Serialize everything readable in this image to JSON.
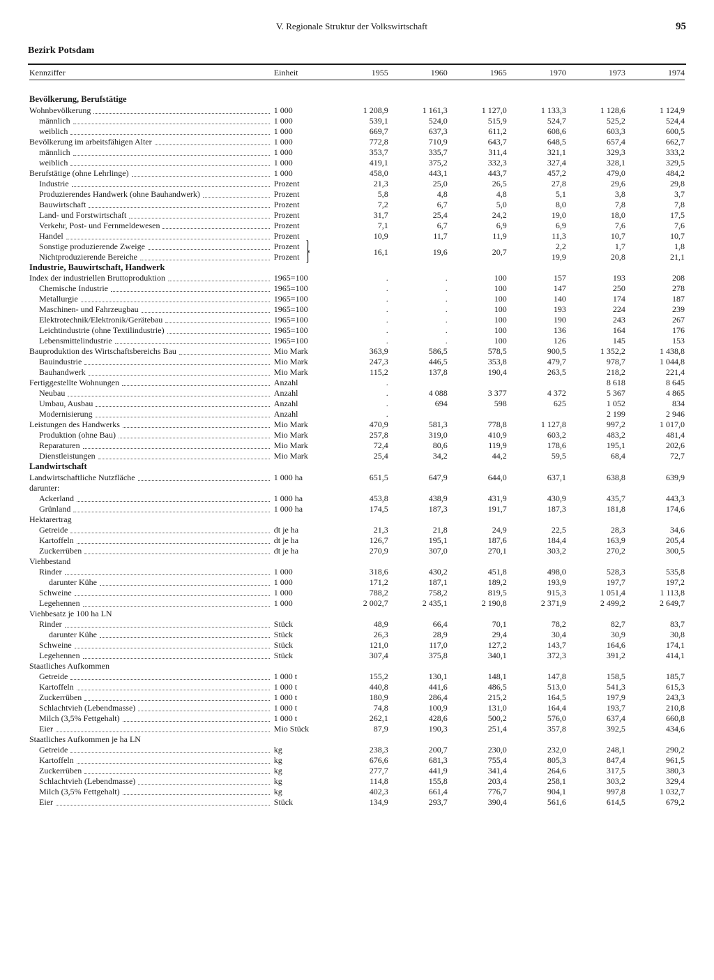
{
  "page": {
    "chapter": "V. Regionale Struktur der Volkswirtschaft",
    "number": "95",
    "title": "Bezirk Potsdam",
    "col_label": "Kennziffer",
    "col_unit": "Einheit",
    "years": [
      "1955",
      "1960",
      "1965",
      "1970",
      "1973",
      "1974"
    ]
  },
  "sections": [
    {
      "heading": "Bevölkerung, Berufstätige",
      "rows": [
        {
          "label": "Wohnbevölkerung",
          "unit": "1 000",
          "indent": 0,
          "v": [
            "1 208,9",
            "1 161,3",
            "1 127,0",
            "1 133,3",
            "1 128,6",
            "1 124,9"
          ]
        },
        {
          "label": "männlich",
          "unit": "1 000",
          "indent": 1,
          "v": [
            "539,1",
            "524,0",
            "515,9",
            "524,7",
            "525,2",
            "524,4"
          ]
        },
        {
          "label": "weiblich",
          "unit": "1 000",
          "indent": 1,
          "v": [
            "669,7",
            "637,3",
            "611,2",
            "608,6",
            "603,3",
            "600,5"
          ]
        },
        {
          "label": "Bevölkerung im arbeitsfähigen Alter",
          "unit": "1 000",
          "indent": 0,
          "v": [
            "772,8",
            "710,9",
            "643,7",
            "648,5",
            "657,4",
            "662,7"
          ]
        },
        {
          "label": "männlich",
          "unit": "1 000",
          "indent": 1,
          "v": [
            "353,7",
            "335,7",
            "311,4",
            "321,1",
            "329,3",
            "333,2"
          ]
        },
        {
          "label": "weiblich",
          "unit": "1 000",
          "indent": 1,
          "v": [
            "419,1",
            "375,2",
            "332,3",
            "327,4",
            "328,1",
            "329,5"
          ]
        },
        {
          "label": "Berufstätige (ohne Lehrlinge)",
          "unit": "1 000",
          "indent": 0,
          "v": [
            "458,0",
            "443,1",
            "443,7",
            "457,2",
            "479,0",
            "484,2"
          ]
        },
        {
          "label": "Industrie",
          "unit": "Prozent",
          "indent": 1,
          "v": [
            "21,3",
            "25,0",
            "26,5",
            "27,8",
            "29,6",
            "29,8"
          ]
        },
        {
          "label": "Produzierendes Handwerk (ohne Bauhandwerk)",
          "unit": "Prozent",
          "indent": 1,
          "v": [
            "5,8",
            "4,8",
            "4,8",
            "5,1",
            "3,8",
            "3,7"
          ]
        },
        {
          "label": "Bauwirtschaft",
          "unit": "Prozent",
          "indent": 1,
          "v": [
            "7,2",
            "6,7",
            "5,0",
            "8,0",
            "7,8",
            "7,8"
          ]
        },
        {
          "label": "Land- und Forstwirtschaft",
          "unit": "Prozent",
          "indent": 1,
          "v": [
            "31,7",
            "25,4",
            "24,2",
            "19,0",
            "18,0",
            "17,5"
          ]
        },
        {
          "label": "Verkehr, Post- und Fernmeldewesen",
          "unit": "Prozent",
          "indent": 1,
          "v": [
            "7,1",
            "6,7",
            "6,9",
            "6,9",
            "7,6",
            "7,6"
          ]
        },
        {
          "label": "Handel",
          "unit": "Prozent",
          "indent": 1,
          "v": [
            "10,9",
            "11,7",
            "11,9",
            "11,3",
            "10,7",
            "10,7"
          ]
        },
        {
          "label": "Sonstige produzierende Zweige",
          "unit": "Prozent",
          "indent": 1,
          "brace": "top",
          "v": [
            "",
            "",
            "",
            "2,2",
            "1,7",
            "1,8"
          ]
        },
        {
          "label": "Nichtproduzierende Bereiche",
          "unit": "Prozent",
          "indent": 1,
          "brace": "bot",
          "span55": "16,1",
          "span60": "19,6",
          "span65": "20,7",
          "v": [
            "",
            "",
            "",
            "19,9",
            "20,8",
            "21,1"
          ]
        }
      ]
    },
    {
      "heading": "Industrie, Bauwirtschaft, Handwerk",
      "rows": [
        {
          "label": "Index der industriellen Bruttoproduktion",
          "unit": "1965=100",
          "indent": 0,
          "v": [
            ".",
            ".",
            "100",
            "157",
            "193",
            "208"
          ]
        },
        {
          "label": "Chemische Industrie",
          "unit": "1965=100",
          "indent": 1,
          "v": [
            ".",
            ".",
            "100",
            "147",
            "250",
            "278"
          ]
        },
        {
          "label": "Metallurgie",
          "unit": "1965=100",
          "indent": 1,
          "v": [
            ".",
            ".",
            "100",
            "140",
            "174",
            "187"
          ]
        },
        {
          "label": "Maschinen- und Fahrzeugbau",
          "unit": "1965=100",
          "indent": 1,
          "v": [
            ".",
            ".",
            "100",
            "193",
            "224",
            "239"
          ]
        },
        {
          "label": "Elektrotechnik/Elektronik/Gerätebau",
          "unit": "1965=100",
          "indent": 1,
          "v": [
            ".",
            ".",
            "100",
            "190",
            "243",
            "267"
          ]
        },
        {
          "label": "Leichtindustrie (ohne Textilindustrie)",
          "unit": "1965=100",
          "indent": 1,
          "v": [
            ".",
            ".",
            "100",
            "136",
            "164",
            "176"
          ]
        },
        {
          "label": "Lebensmittelindustrie",
          "unit": "1965=100",
          "indent": 1,
          "v": [
            ".",
            ".",
            "100",
            "126",
            "145",
            "153"
          ]
        },
        {
          "label": "Bauproduktion des Wirtschaftsbereichs Bau",
          "unit": "Mio Mark",
          "indent": 0,
          "v": [
            "363,9",
            "586,5",
            "578,5",
            "900,5",
            "1 352,2",
            "1 438,8"
          ]
        },
        {
          "label": "Bauindustrie",
          "unit": "Mio Mark",
          "indent": 1,
          "v": [
            "247,3",
            "446,5",
            "353,8",
            "479,7",
            "978,7",
            "1 044,8"
          ]
        },
        {
          "label": "Bauhandwerk",
          "unit": "Mio Mark",
          "indent": 1,
          "v": [
            "115,2",
            "137,8",
            "190,4",
            "263,5",
            "218,2",
            "221,4"
          ]
        },
        {
          "label": "Fertiggestellte Wohnungen",
          "unit": "Anzahl",
          "indent": 0,
          "v": [
            ".",
            "",
            "",
            "",
            "8 618",
            "8 645"
          ]
        },
        {
          "label": "Neubau",
          "unit": "Anzahl",
          "indent": 1,
          "v": [
            ".",
            "4 088",
            "3 377",
            "4 372",
            "5 367",
            "4 865"
          ]
        },
        {
          "label": "Umbau, Ausbau",
          "unit": "Anzahl",
          "indent": 1,
          "v": [
            ".",
            "694",
            "598",
            "625",
            "1 052",
            "834"
          ]
        },
        {
          "label": "Modernisierung",
          "unit": "Anzahl",
          "indent": 1,
          "v": [
            ".",
            "",
            "",
            "",
            "2 199",
            "2 946"
          ]
        },
        {
          "label": "Leistungen des Handwerks",
          "unit": "Mio Mark",
          "indent": 0,
          "v": [
            "470,9",
            "581,3",
            "778,8",
            "1 127,8",
            "997,2",
            "1 017,0"
          ]
        },
        {
          "label": "Produktion (ohne Bau)",
          "unit": "Mio Mark",
          "indent": 1,
          "v": [
            "257,8",
            "319,0",
            "410,9",
            "603,2",
            "483,2",
            "481,4"
          ]
        },
        {
          "label": "Reparaturen",
          "unit": "Mio Mark",
          "indent": 1,
          "v": [
            "72,4",
            "80,6",
            "119,9",
            "178,6",
            "195,1",
            "202,6"
          ]
        },
        {
          "label": "Dienstleistungen",
          "unit": "Mio Mark",
          "indent": 1,
          "v": [
            "25,4",
            "34,2",
            "44,2",
            "59,5",
            "68,4",
            "72,7"
          ]
        }
      ]
    },
    {
      "heading": "Landwirtschaft",
      "rows": [
        {
          "label": "Landwirtschaftliche Nutzfläche",
          "unit": "1 000 ha",
          "indent": 0,
          "v": [
            "651,5",
            "647,9",
            "644,0",
            "637,1",
            "638,8",
            "639,9"
          ]
        },
        {
          "label": "darunter:",
          "unit": "",
          "indent": 1,
          "noLeader": true,
          "v": [
            "",
            "",
            "",
            "",
            "",
            ""
          ]
        },
        {
          "label": "Ackerland",
          "unit": "1 000 ha",
          "indent": 1,
          "v": [
            "453,8",
            "438,9",
            "431,9",
            "430,9",
            "435,7",
            "443,3"
          ]
        },
        {
          "label": "Grünland",
          "unit": "1 000 ha",
          "indent": 1,
          "v": [
            "174,5",
            "187,3",
            "191,7",
            "187,3",
            "181,8",
            "174,6"
          ]
        },
        {
          "label": "Hektarertrag",
          "unit": "",
          "indent": 0,
          "noLeader": true,
          "v": [
            "",
            "",
            "",
            "",
            "",
            ""
          ]
        },
        {
          "label": "Getreide",
          "unit": "dt je ha",
          "indent": 1,
          "v": [
            "21,3",
            "21,8",
            "24,9",
            "22,5",
            "28,3",
            "34,6"
          ]
        },
        {
          "label": "Kartoffeln",
          "unit": "dt je ha",
          "indent": 1,
          "v": [
            "126,7",
            "195,1",
            "187,6",
            "184,4",
            "163,9",
            "205,4"
          ]
        },
        {
          "label": "Zuckerrüben",
          "unit": "dt je ha",
          "indent": 1,
          "v": [
            "270,9",
            "307,0",
            "270,1",
            "303,2",
            "270,2",
            "300,5"
          ]
        },
        {
          "label": "Viehbestand",
          "unit": "",
          "indent": 0,
          "noLeader": true,
          "v": [
            "",
            "",
            "",
            "",
            "",
            ""
          ]
        },
        {
          "label": "Rinder",
          "unit": "1 000",
          "indent": 1,
          "v": [
            "318,6",
            "430,2",
            "451,8",
            "498,0",
            "528,3",
            "535,8"
          ]
        },
        {
          "label": "darunter Kühe",
          "unit": "1 000",
          "indent": 2,
          "v": [
            "171,2",
            "187,1",
            "189,2",
            "193,9",
            "197,7",
            "197,2"
          ]
        },
        {
          "label": "Schweine",
          "unit": "1 000",
          "indent": 1,
          "v": [
            "788,2",
            "758,2",
            "819,5",
            "915,3",
            "1 051,4",
            "1 113,8"
          ]
        },
        {
          "label": "Legehennen",
          "unit": "1 000",
          "indent": 1,
          "v": [
            "2 002,7",
            "2 435,1",
            "2 190,8",
            "2 371,9",
            "2 499,2",
            "2 649,7"
          ]
        },
        {
          "label": "Viehbesatz je 100 ha LN",
          "unit": "",
          "indent": 0,
          "noLeader": true,
          "v": [
            "",
            "",
            "",
            "",
            "",
            ""
          ]
        },
        {
          "label": "Rinder",
          "unit": "Stück",
          "indent": 1,
          "v": [
            "48,9",
            "66,4",
            "70,1",
            "78,2",
            "82,7",
            "83,7"
          ]
        },
        {
          "label": "darunter Kühe",
          "unit": "Stück",
          "indent": 2,
          "v": [
            "26,3",
            "28,9",
            "29,4",
            "30,4",
            "30,9",
            "30,8"
          ]
        },
        {
          "label": "Schweine",
          "unit": "Stück",
          "indent": 1,
          "v": [
            "121,0",
            "117,0",
            "127,2",
            "143,7",
            "164,6",
            "174,1"
          ]
        },
        {
          "label": "Legehennen",
          "unit": "Stück",
          "indent": 1,
          "v": [
            "307,4",
            "375,8",
            "340,1",
            "372,3",
            "391,2",
            "414,1"
          ]
        },
        {
          "label": "Staatliches Aufkommen",
          "unit": "",
          "indent": 0,
          "noLeader": true,
          "v": [
            "",
            "",
            "",
            "",
            "",
            ""
          ]
        },
        {
          "label": "Getreide",
          "unit": "1 000 t",
          "indent": 1,
          "v": [
            "155,2",
            "130,1",
            "148,1",
            "147,8",
            "158,5",
            "185,7"
          ]
        },
        {
          "label": "Kartoffeln",
          "unit": "1 000 t",
          "indent": 1,
          "v": [
            "440,8",
            "441,6",
            "486,5",
            "513,0",
            "541,3",
            "615,3"
          ]
        },
        {
          "label": "Zuckerrüben",
          "unit": "1 000 t",
          "indent": 1,
          "v": [
            "180,9",
            "286,4",
            "215,2",
            "164,5",
            "197,9",
            "243,3"
          ]
        },
        {
          "label": "Schlachtvieh (Lebendmasse)",
          "unit": "1 000 t",
          "indent": 1,
          "v": [
            "74,8",
            "100,9",
            "131,0",
            "164,4",
            "193,7",
            "210,8"
          ]
        },
        {
          "label": "Milch (3,5% Fettgehalt)",
          "unit": "1 000 t",
          "indent": 1,
          "v": [
            "262,1",
            "428,6",
            "500,2",
            "576,0",
            "637,4",
            "660,8"
          ]
        },
        {
          "label": "Eier",
          "unit": "Mio Stück",
          "indent": 1,
          "v": [
            "87,9",
            "190,3",
            "251,4",
            "357,8",
            "392,5",
            "434,6"
          ]
        },
        {
          "label": "Staatliches Aufkommen je ha LN",
          "unit": "",
          "indent": 0,
          "noLeader": true,
          "v": [
            "",
            "",
            "",
            "",
            "",
            ""
          ]
        },
        {
          "label": "Getreide",
          "unit": "kg",
          "indent": 1,
          "v": [
            "238,3",
            "200,7",
            "230,0",
            "232,0",
            "248,1",
            "290,2"
          ]
        },
        {
          "label": "Kartoffeln",
          "unit": "kg",
          "indent": 1,
          "v": [
            "676,6",
            "681,3",
            "755,4",
            "805,3",
            "847,4",
            "961,5"
          ]
        },
        {
          "label": "Zuckerrüben",
          "unit": "kg",
          "indent": 1,
          "v": [
            "277,7",
            "441,9",
            "341,4",
            "264,6",
            "317,5",
            "380,3"
          ]
        },
        {
          "label": "Schlachtvieh (Lebendmasse)",
          "unit": "kg",
          "indent": 1,
          "v": [
            "114,8",
            "155,8",
            "203,4",
            "258,1",
            "303,2",
            "329,4"
          ]
        },
        {
          "label": "Milch (3,5% Fettgehalt)",
          "unit": "kg",
          "indent": 1,
          "v": [
            "402,3",
            "661,4",
            "776,7",
            "904,1",
            "997,8",
            "1 032,7"
          ]
        },
        {
          "label": "Eier",
          "unit": "Stück",
          "indent": 1,
          "v": [
            "134,9",
            "293,7",
            "390,4",
            "561,6",
            "614,5",
            "679,2"
          ]
        }
      ]
    }
  ]
}
